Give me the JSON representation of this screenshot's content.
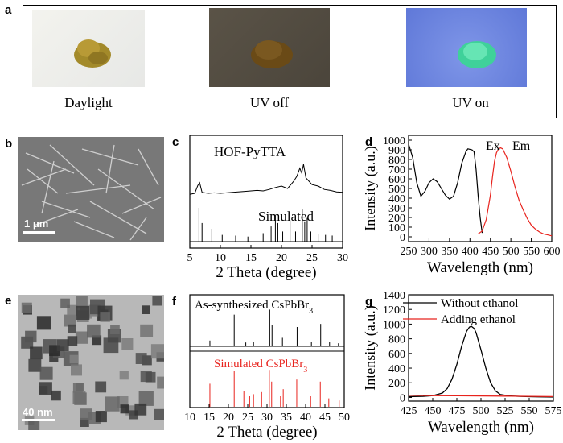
{
  "panel_labels": {
    "a": "a",
    "b": "b",
    "c": "c",
    "d": "d",
    "e": "e",
    "f": "f",
    "g": "g"
  },
  "photos": [
    {
      "caption": "Daylight"
    },
    {
      "caption": "UV off"
    },
    {
      "caption": "UV on"
    }
  ],
  "sem_scale": "1 μm",
  "tem_scale": "40 nm",
  "colors": {
    "black_series": "#000000",
    "red_series": "#e8231d",
    "uv_bg": "#6f8be0",
    "glow": "#47d79a"
  },
  "chart_data": [
    {
      "id": "c",
      "type": "line",
      "xlabel": "2 Theta (degree)",
      "xlim": [
        5,
        30
      ],
      "xticks": [
        "5",
        "10",
        "15",
        "20",
        "25",
        "30"
      ],
      "series": [
        {
          "name": "HOF-PyTTA",
          "x": [
            5,
            5.8,
            6.3,
            6.6,
            7,
            8,
            9,
            10,
            12,
            14,
            16,
            17,
            18,
            19,
            20,
            21,
            22,
            22.5,
            23,
            23.3,
            23.6,
            24,
            24.5,
            25,
            26,
            27,
            28,
            29,
            30
          ],
          "y": [
            0.28,
            0.3,
            0.46,
            0.52,
            0.32,
            0.3,
            0.31,
            0.3,
            0.32,
            0.34,
            0.36,
            0.35,
            0.38,
            0.42,
            0.45,
            0.4,
            0.55,
            0.65,
            0.82,
            0.72,
            0.9,
            0.62,
            0.55,
            0.48,
            0.45,
            0.38,
            0.36,
            0.33,
            0.32
          ]
        },
        {
          "name": "Simulated",
          "peaks": [
            [
              6.5,
              1.0
            ],
            [
              7,
              0.55
            ],
            [
              8.6,
              0.38
            ],
            [
              10.3,
              0.2
            ],
            [
              12.5,
              0.18
            ],
            [
              14.5,
              0.15
            ],
            [
              17,
              0.25
            ],
            [
              18.3,
              0.45
            ],
            [
              19,
              0.78
            ],
            [
              19.4,
              0.55
            ],
            [
              20.2,
              0.3
            ],
            [
              21.4,
              0.62
            ],
            [
              22.3,
              0.3
            ],
            [
              23.4,
              0.95
            ],
            [
              23.8,
              0.6
            ],
            [
              24.2,
              0.7
            ],
            [
              24.8,
              0.3
            ],
            [
              26,
              0.22
            ],
            [
              27.2,
              0.2
            ],
            [
              28.3,
              0.18
            ]
          ]
        }
      ]
    },
    {
      "id": "d",
      "type": "line",
      "xlabel": "Wavelength (nm)",
      "ylabel": "Intensity (a.u.)",
      "xlim": [
        250,
        600
      ],
      "ylim": [
        -50,
        1050
      ],
      "xticks": [
        "250",
        "300",
        "350",
        "400",
        "450",
        "500",
        "550",
        "600"
      ],
      "yticks": [
        "0",
        "100",
        "200",
        "300",
        "400",
        "500",
        "600",
        "700",
        "800",
        "900",
        "1000"
      ],
      "series": [
        {
          "name": "Ex",
          "x": [
            250,
            260,
            270,
            280,
            290,
            300,
            310,
            320,
            330,
            340,
            350,
            360,
            370,
            380,
            390,
            395,
            400,
            405,
            410,
            415,
            420,
            425,
            430
          ],
          "y": [
            960,
            820,
            560,
            420,
            470,
            560,
            600,
            570,
            500,
            430,
            390,
            420,
            560,
            760,
            880,
            910,
            905,
            900,
            880,
            700,
            420,
            200,
            40
          ]
        },
        {
          "name": "Em",
          "x": [
            420,
            430,
            440,
            450,
            455,
            460,
            465,
            470,
            475,
            480,
            490,
            500,
            510,
            520,
            530,
            540,
            550,
            560,
            570,
            580,
            590,
            600
          ],
          "y": [
            30,
            60,
            180,
            430,
            620,
            780,
            870,
            910,
            920,
            910,
            820,
            680,
            520,
            380,
            280,
            190,
            120,
            80,
            50,
            30,
            20,
            10
          ]
        }
      ]
    },
    {
      "id": "f",
      "type": "line",
      "xlabel": "2 Theta (degree)",
      "xlim": [
        10,
        50
      ],
      "xticks": [
        "10",
        "15",
        "20",
        "25",
        "30",
        "35",
        "40",
        "45",
        "50"
      ],
      "series": [
        {
          "name": "As-synthesized CsPbBr",
          "peaks": [
            [
              15.2,
              0.15
            ],
            [
              21.5,
              0.82
            ],
            [
              24.5,
              0.1
            ],
            [
              26.5,
              0.12
            ],
            [
              30.7,
              0.95
            ],
            [
              31.3,
              0.55
            ],
            [
              34,
              0.22
            ],
            [
              37.8,
              0.5
            ],
            [
              41.5,
              0.12
            ],
            [
              43.9,
              0.58
            ],
            [
              46.2,
              0.12
            ],
            [
              48.5,
              0.08
            ]
          ]
        },
        {
          "name": "Simulated CsPbBr",
          "peaks": [
            [
              15.2,
              0.55
            ],
            [
              21.5,
              0.85
            ],
            [
              24,
              0.38
            ],
            [
              25.5,
              0.25
            ],
            [
              26.5,
              0.3
            ],
            [
              28.6,
              0.35
            ],
            [
              30.6,
              0.88
            ],
            [
              31.2,
              0.6
            ],
            [
              33.5,
              0.25
            ],
            [
              34.2,
              0.42
            ],
            [
              37.7,
              0.65
            ],
            [
              41.3,
              0.25
            ],
            [
              43.8,
              0.6
            ],
            [
              46,
              0.2
            ],
            [
              48.7,
              0.15
            ]
          ]
        }
      ]
    },
    {
      "id": "g",
      "type": "line",
      "xlabel": "Wavelength (nm)",
      "ylabel": "Intensity (a.u.)",
      "xlim": [
        425,
        575
      ],
      "ylim": [
        -50,
        1400
      ],
      "xticks": [
        "425",
        "450",
        "475",
        "500",
        "525",
        "550",
        "575"
      ],
      "yticks": [
        "0",
        "200",
        "400",
        "600",
        "800",
        "1000",
        "1200",
        "1400"
      ],
      "series": [
        {
          "name": "Without ethanol",
          "x": [
            425,
            440,
            450,
            460,
            465,
            470,
            475,
            480,
            485,
            488,
            490,
            493,
            495,
            500,
            505,
            510,
            515,
            520,
            530,
            540,
            550,
            560,
            575
          ],
          "y": [
            10,
            15,
            25,
            60,
            120,
            250,
            450,
            700,
            900,
            960,
            970,
            940,
            880,
            650,
            400,
            200,
            90,
            40,
            20,
            15,
            10,
            8,
            5
          ]
        },
        {
          "name": "Adding ethanol",
          "x": [
            425,
            450,
            475,
            500,
            525,
            550,
            575
          ],
          "y": [
            30,
            25,
            22,
            20,
            18,
            15,
            12
          ]
        }
      ]
    }
  ]
}
